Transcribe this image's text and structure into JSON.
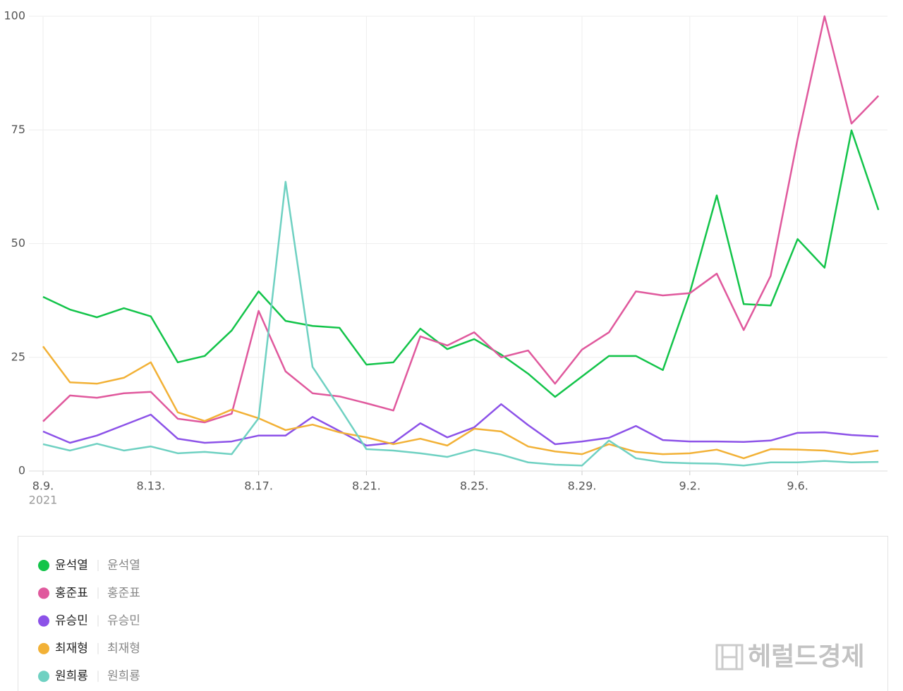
{
  "chart_data": {
    "type": "line",
    "categories": [
      "8.9.",
      null,
      null,
      null,
      "8.13.",
      null,
      null,
      null,
      "8.17.",
      null,
      null,
      null,
      "8.21.",
      null,
      null,
      null,
      "8.25.",
      null,
      null,
      null,
      "8.29.",
      null,
      null,
      null,
      "9.2.",
      null,
      null,
      null,
      "9.6.",
      null,
      null,
      null
    ],
    "year_label": "2021",
    "ylim": [
      0,
      100
    ],
    "yticks": [
      0,
      25,
      50,
      75,
      100
    ],
    "grid": true,
    "series": [
      {
        "name": "윤석열",
        "color": "#13c44a",
        "values": [
          38.3,
          35.5,
          33.8,
          35.8,
          34,
          23.9,
          25.3,
          30.9,
          39.5,
          33,
          31.9,
          31.5,
          23.4,
          23.9,
          31.3,
          26.8,
          29,
          25.6,
          21.4,
          16.3,
          20.8,
          25.3,
          25.3,
          22.2,
          39.2,
          60.6,
          36.7,
          36.4,
          51,
          44.7,
          74.9,
          57.4
        ]
      },
      {
        "name": "홍준표",
        "color": "#e0599d",
        "values": [
          10.9,
          16.6,
          16.1,
          17.1,
          17.4,
          11.5,
          10.7,
          12.6,
          35.2,
          21.9,
          17.1,
          16.4,
          14.9,
          13.3,
          29.6,
          27.6,
          30.5,
          25,
          26.5,
          19.2,
          26.7,
          30.5,
          39.5,
          38.6,
          39.1,
          43.4,
          31,
          42.9,
          73,
          100,
          76.4,
          82.5
        ]
      },
      {
        "name": "유승민",
        "color": "#8c52e8",
        "values": [
          8.7,
          6.2,
          7.8,
          10.1,
          12.4,
          7.1,
          6.2,
          6.5,
          7.8,
          7.8,
          11.9,
          8.8,
          5.6,
          6.2,
          10.5,
          7.4,
          9.6,
          14.7,
          10.1,
          5.9,
          6.5,
          7.3,
          9.9,
          6.8,
          6.5,
          6.5,
          6.4,
          6.7,
          8.4,
          8.5,
          7.9,
          7.6
        ]
      },
      {
        "name": "최재형",
        "color": "#f2b136",
        "values": [
          27.4,
          19.5,
          19.2,
          20.5,
          23.9,
          12.9,
          11,
          13.5,
          11.6,
          9,
          10.2,
          8.5,
          7.4,
          5.9,
          7.1,
          5.6,
          9.3,
          8.7,
          5.4,
          4.3,
          3.7,
          5.9,
          4.2,
          3.7,
          3.9,
          4.7,
          2.8,
          4.8,
          4.7,
          4.5,
          3.7,
          4.5
        ]
      },
      {
        "name": "원희룡",
        "color": "#6fd1c2",
        "values": [
          5.9,
          4.5,
          6,
          4.5,
          5.4,
          3.9,
          4.2,
          3.7,
          11.6,
          63.6,
          22.9,
          14,
          4.8,
          4.5,
          3.9,
          3.1,
          4.7,
          3.6,
          1.9,
          1.4,
          1.2,
          6.7,
          2.8,
          1.9,
          1.7,
          1.6,
          1.2,
          1.9,
          1.9,
          2.2,
          1.9,
          2
        ]
      }
    ]
  },
  "watermark": "헤럴드경제"
}
